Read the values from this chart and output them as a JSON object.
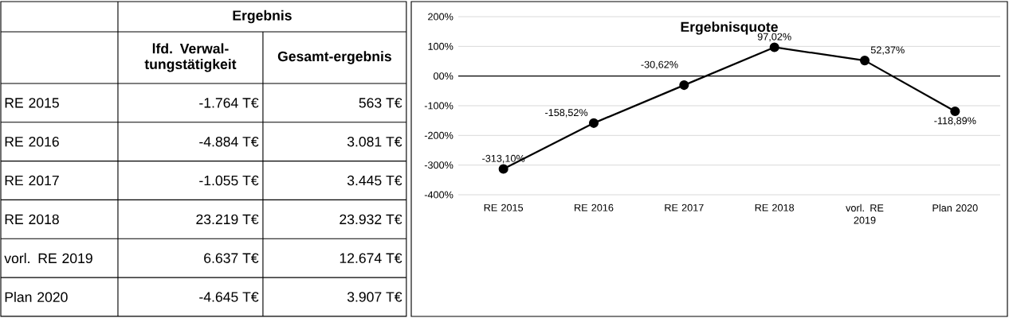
{
  "chart_data": [
    {
      "type": "other",
      "title": "Ergebnis",
      "annotations": [
        "lfd. Verwal-tungstätigkeit",
        "Gesamt-ergebnis",
        "RE 2015",
        "-1.764 T€",
        "563 T€",
        "RE 2016",
        "-4.884 T€",
        "3.081 T€",
        "RE 2017",
        "-1.055 T€",
        "3.445 T€",
        "RE 2018",
        "23.219 T€",
        "23.932 T€",
        "vorl. RE 2019",
        "6.637 T€",
        "12.674 T€",
        "Plan 2020",
        "-4.645 T€",
        "3.907 T€"
      ]
    },
    {
      "type": "line",
      "title": "Ergebnisquote",
      "categories": [
        "RE 2015",
        "RE 2016",
        "RE 2017",
        "RE 2018",
        "vorl. RE 2019",
        "Plan 2020"
      ],
      "values": [
        -313.1,
        -158.52,
        -30.62,
        97.02,
        52.37,
        -118.89
      ],
      "value_labels": [
        "-313,10%",
        "-158,52%",
        "-30,62%",
        "97,02%",
        "52,37%",
        "-118,89%"
      ],
      "color": "#000000",
      "marker": "circle",
      "line_style": "solid",
      "grid": "y",
      "ylim": [
        -400,
        200
      ],
      "yticks": [
        {
          "value": -400,
          "label": "-400%"
        },
        {
          "value": -300,
          "label": "-300%"
        },
        {
          "value": -200,
          "label": "-200%"
        },
        {
          "value": -100,
          "label": "-100%"
        },
        {
          "value": 0,
          "label": "00%"
        },
        {
          "value": 100,
          "label": "100%"
        },
        {
          "value": 200,
          "label": "200%"
        }
      ],
      "ref_lines": [
        {
          "axis": "y",
          "value": 0,
          "color": "#000000"
        }
      ]
    }
  ]
}
